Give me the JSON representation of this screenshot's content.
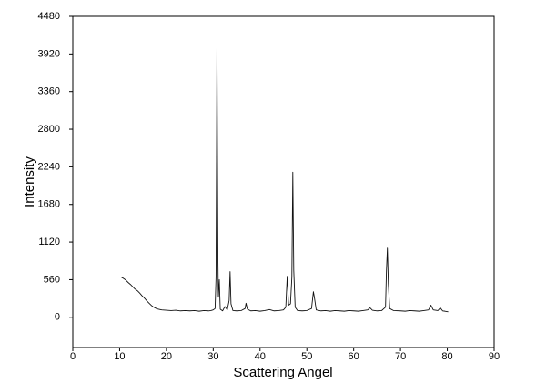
{
  "chart_data": {
    "type": "line",
    "x_label": "Scattering Angel",
    "y_label": "Intensity",
    "xlim": [
      0,
      90
    ],
    "xticks": [
      0,
      10,
      20,
      30,
      40,
      50,
      60,
      70,
      80,
      90
    ],
    "ylim": [
      -450,
      4480
    ],
    "yticks": [
      0,
      560,
      1120,
      1680,
      2240,
      2800,
      3360,
      3920,
      4480
    ],
    "grid": false,
    "x": [
      10.3,
      10.8,
      11.3,
      11.8,
      12.3,
      12.8,
      13.3,
      13.8,
      14.3,
      14.8,
      15.3,
      15.8,
      16.3,
      16.8,
      17.3,
      18,
      19,
      20,
      21,
      22,
      23,
      24,
      25,
      26,
      27,
      28,
      29,
      29.5,
      30,
      30.4,
      30.6,
      30.8,
      31,
      31.1,
      31.3,
      31.5,
      32,
      32.5,
      33,
      33.4,
      33.6,
      33.8,
      34.2,
      35,
      36,
      36.8,
      37,
      37.3,
      38,
      39,
      40,
      41,
      42,
      43,
      44,
      45,
      45.5,
      45.8,
      46.1,
      46.5,
      46.8,
      47,
      47.2,
      47.5,
      48,
      49,
      50,
      51,
      51.4,
      51.6,
      52,
      53,
      54,
      55,
      56,
      57,
      58,
      59,
      60,
      61,
      62,
      63,
      63.5,
      64,
      65,
      66,
      66.8,
      67,
      67.2,
      67.4,
      67.7,
      68.5,
      70,
      71,
      72,
      73,
      74,
      75,
      76,
      76.5,
      77,
      78,
      78.5,
      79,
      79.5,
      80.2
    ],
    "series": [
      {
        "color": "#111111",
        "values": [
          600,
          580,
          555,
          520,
          490,
          455,
          420,
          395,
          360,
          320,
          285,
          245,
          210,
          175,
          150,
          125,
          110,
          105,
          100,
          105,
          95,
          100,
          95,
          100,
          90,
          100,
          95,
          100,
          110,
          130,
          600,
          4020,
          900,
          300,
          560,
          120,
          95,
          160,
          110,
          250,
          680,
          200,
          100,
          95,
          100,
          130,
          210,
          120,
          95,
          100,
          90,
          100,
          115,
          95,
          100,
          110,
          150,
          610,
          180,
          200,
          600,
          2160,
          700,
          150,
          100,
          95,
          100,
          130,
          380,
          300,
          110,
          95,
          100,
          90,
          100,
          95,
          90,
          100,
          95,
          90,
          100,
          110,
          140,
          105,
          95,
          100,
          150,
          700,
          1030,
          500,
          130,
          100,
          95,
          90,
          100,
          95,
          90,
          100,
          110,
          180,
          110,
          100,
          140,
          95,
          90,
          80
        ]
      }
    ]
  }
}
